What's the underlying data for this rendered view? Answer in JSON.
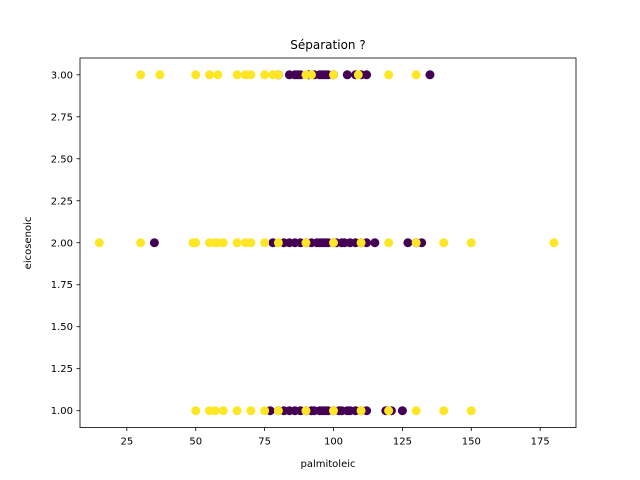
{
  "chart_data": {
    "type": "scatter",
    "title": "Séparation ?",
    "xlabel": "palmitoleic",
    "ylabel": "eicosenoic",
    "xlim": [
      8,
      188
    ],
    "ylim": [
      0.9,
      3.1
    ],
    "xticks": [
      25,
      50,
      75,
      100,
      125,
      150,
      175
    ],
    "xtick_labels": [
      "25",
      "50",
      "75",
      "100",
      "125",
      "150",
      "175"
    ],
    "yticks": [
      1.0,
      1.25,
      1.5,
      1.75,
      2.0,
      2.25,
      2.5,
      2.75,
      3.0
    ],
    "ytick_labels": [
      "1.00",
      "1.25",
      "1.50",
      "1.75",
      "2.00",
      "2.25",
      "2.50",
      "2.75",
      "3.00"
    ],
    "grid": false,
    "colors": {
      "class_a": "#fde725",
      "class_b": "#440154"
    },
    "series": [
      {
        "name": "class_b",
        "color": "#440154",
        "x": [
          80,
          84,
          86,
          87,
          88,
          91,
          93,
          95,
          96,
          97,
          98,
          100,
          105,
          108,
          110,
          112,
          135,
          35,
          78,
          82,
          84,
          86,
          88,
          90,
          92,
          94,
          95,
          96,
          97,
          98,
          100,
          101,
          103,
          104,
          106,
          108,
          110,
          112,
          115,
          127,
          130,
          132,
          77,
          80,
          82,
          84,
          86,
          88,
          90,
          92,
          93,
          95,
          96,
          97,
          98,
          100,
          102,
          103,
          105,
          106,
          108,
          110,
          112,
          119,
          121,
          125
        ],
        "y": [
          3,
          3,
          3,
          3,
          3,
          3,
          3,
          3,
          3,
          3,
          3,
          3,
          3,
          3,
          3,
          3,
          3,
          2,
          2,
          2,
          2,
          2,
          2,
          2,
          2,
          2,
          2,
          2,
          2,
          2,
          2,
          2,
          2,
          2,
          2,
          2,
          2,
          2,
          2,
          2,
          2,
          2,
          1,
          1,
          1,
          1,
          1,
          1,
          1,
          1,
          1,
          1,
          1,
          1,
          1,
          1,
          1,
          1,
          1,
          1,
          1,
          1,
          1,
          1,
          1,
          1
        ]
      },
      {
        "name": "class_a",
        "color": "#fde725",
        "x": [
          30,
          37,
          50,
          55,
          58,
          65,
          68,
          70,
          75,
          78,
          80,
          90,
          92,
          100,
          109,
          120,
          130,
          15,
          30,
          49,
          50,
          55,
          57,
          58,
          60,
          65,
          68,
          70,
          75,
          80,
          90,
          100,
          110,
          120,
          130,
          140,
          150,
          180,
          50,
          55,
          57,
          60,
          65,
          70,
          75,
          80,
          90,
          100,
          110,
          120,
          130,
          140,
          150
        ],
        "y": [
          3,
          3,
          3,
          3,
          3,
          3,
          3,
          3,
          3,
          3,
          3,
          3,
          3,
          3,
          3,
          3,
          3,
          2,
          2,
          2,
          2,
          2,
          2,
          2,
          2,
          2,
          2,
          2,
          2,
          2,
          2,
          2,
          2,
          2,
          2,
          2,
          2,
          2,
          1,
          1,
          1,
          1,
          1,
          1,
          1,
          1,
          1,
          1,
          1,
          1,
          1,
          1,
          1
        ]
      }
    ]
  }
}
